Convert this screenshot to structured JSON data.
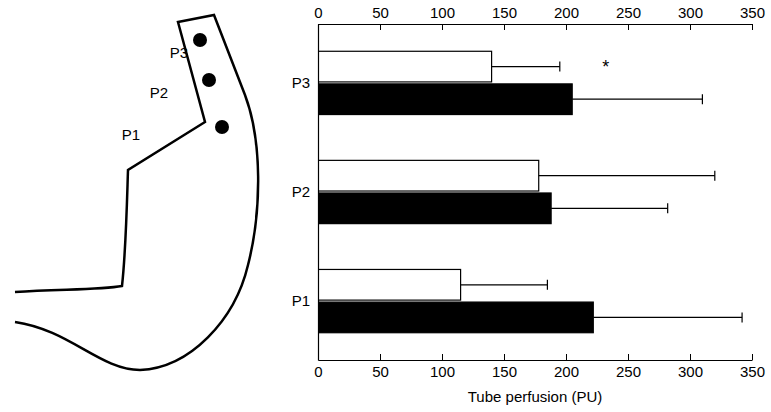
{
  "chart_data": {
    "type": "bar",
    "orientation": "horizontal",
    "x_label": "Tube perfusion (PU)",
    "categories": [
      "P1",
      "P2",
      "P3"
    ],
    "series": [
      {
        "color": "#ffffff",
        "values": [
          115,
          178,
          140
        ],
        "errors": [
          70,
          142,
          55
        ]
      },
      {
        "color": "#000000",
        "values": [
          222,
          188,
          205
        ],
        "errors": [
          120,
          94,
          105
        ]
      }
    ],
    "xlim": [
      0,
      350
    ],
    "xticks": [
      0,
      50,
      100,
      150,
      200,
      250,
      300,
      350
    ],
    "annotations": [
      {
        "text": "*",
        "x": 232,
        "category": "P3"
      }
    ]
  }
}
